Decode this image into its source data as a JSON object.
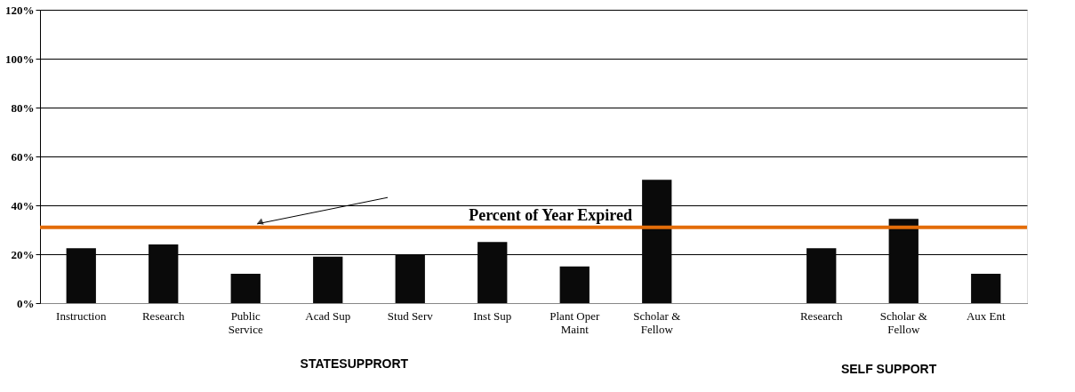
{
  "chart_data": {
    "type": "bar",
    "categories": [
      "Instruction",
      "Research",
      "Public Service",
      "Acad Sup",
      "Stud Serv",
      "Inst Sup",
      "Plant Oper Maint",
      "Scholar & Fellow",
      null,
      "Research",
      "Scholar & Fellow",
      "Aux Ent"
    ],
    "values": [
      22.5,
      24,
      12,
      19,
      20,
      25,
      15,
      50.5,
      null,
      22.5,
      34.5,
      12
    ],
    "color": "#0a0a0a",
    "ylim": [
      0,
      120
    ],
    "yticks": [
      {
        "value": 0,
        "label": "0%"
      },
      {
        "value": 20,
        "label": "20%"
      },
      {
        "value": 40,
        "label": "40%"
      },
      {
        "value": 60,
        "label": "60%"
      },
      {
        "value": 80,
        "label": "80%"
      },
      {
        "value": 100,
        "label": "100%"
      },
      {
        "value": 120,
        "label": "120%"
      }
    ],
    "grid": "y",
    "ref_lines": [
      {
        "axis": "y",
        "value": 31,
        "label": "Percent of Year Expired",
        "color": "#e36c09"
      }
    ],
    "annotations": [
      "STATESUPPRORT",
      "SELF SUPPORT"
    ]
  }
}
